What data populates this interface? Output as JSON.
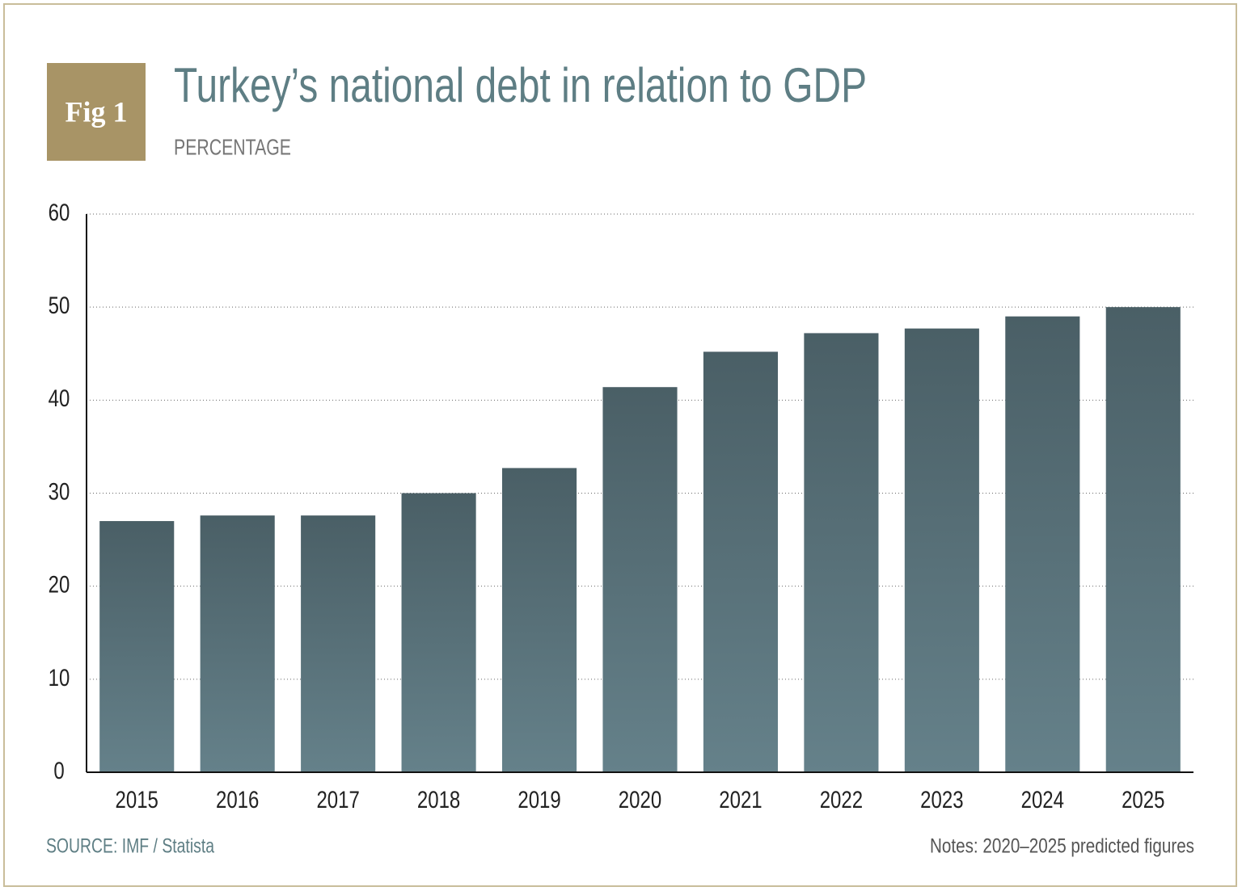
{
  "chart_data": {
    "type": "bar",
    "badge": "Fig 1",
    "title": "Turkey’s national debt in relation to GDP",
    "subtitle": "PERCENTAGE",
    "categories": [
      "2015",
      "2016",
      "2017",
      "2018",
      "2019",
      "2020",
      "2021",
      "2022",
      "2023",
      "2024",
      "2025"
    ],
    "values": [
      27,
      27.6,
      27.6,
      30,
      32.7,
      41.4,
      45.2,
      47.2,
      47.7,
      49,
      50
    ],
    "color": "#4a5f66",
    "color_bottom": "#65818a",
    "ylim": [
      0,
      60
    ],
    "yticks": [
      0,
      10,
      20,
      30,
      40,
      50,
      60
    ],
    "grid": true,
    "source": "SOURCE: IMF / Statista",
    "notes": "Notes: 2020–2025 predicted figures"
  }
}
